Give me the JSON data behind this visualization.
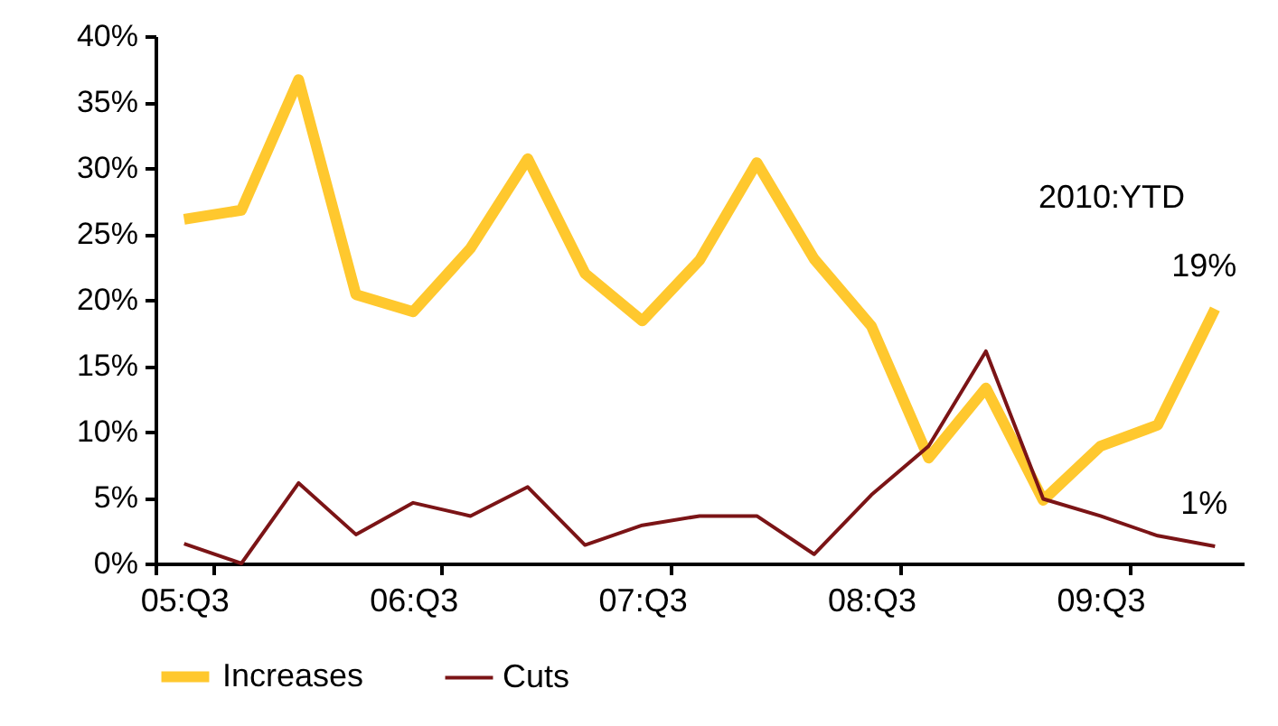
{
  "chart_data": {
    "type": "line",
    "categories": [
      "05:Q3",
      null,
      null,
      null,
      "06:Q3",
      null,
      null,
      null,
      "07:Q3",
      null,
      null,
      null,
      "08:Q3",
      null,
      null,
      null,
      "09:Q3",
      null,
      null
    ],
    "series": [
      {
        "name": "Increases",
        "color": "#ffc82e",
        "values": [
          26.1,
          26.8,
          36.7,
          20.4,
          19.1,
          23.9,
          30.7,
          22.0,
          18.4,
          23.0,
          30.4,
          23.1,
          18.0,
          8.0,
          13.3,
          4.8,
          8.9,
          10.5,
          19.3
        ],
        "value_labels": [
          null,
          null,
          null,
          null,
          null,
          null,
          null,
          null,
          null,
          null,
          null,
          null,
          null,
          null,
          null,
          null,
          null,
          null,
          "19%"
        ]
      },
      {
        "name": "Cuts",
        "color": "#7b1416",
        "values": [
          1.5,
          0,
          6.1,
          2.2,
          4.6,
          3.6,
          5.8,
          1.4,
          2.9,
          3.6,
          3.6,
          0.7,
          5.2,
          8.9,
          16.1,
          4.9,
          3.6,
          2.1,
          1.3
        ],
        "value_labels": [
          null,
          null,
          null,
          null,
          null,
          null,
          null,
          null,
          null,
          null,
          null,
          null,
          null,
          null,
          null,
          null,
          null,
          null,
          "1%"
        ]
      }
    ],
    "ylim": [
      0,
      40
    ],
    "yticks": [
      {
        "value": 0,
        "label": "0%"
      },
      {
        "value": 5,
        "label": "5%"
      },
      {
        "value": 10,
        "label": "10%"
      },
      {
        "value": 15,
        "label": "15%"
      },
      {
        "value": 20,
        "label": "20%"
      },
      {
        "value": 25,
        "label": "25%"
      },
      {
        "value": 30,
        "label": "30%"
      },
      {
        "value": 35,
        "label": "35%"
      },
      {
        "value": 40,
        "label": "40%"
      }
    ],
    "annotations": [
      "2010:YTD"
    ],
    "legend": "bottom"
  }
}
